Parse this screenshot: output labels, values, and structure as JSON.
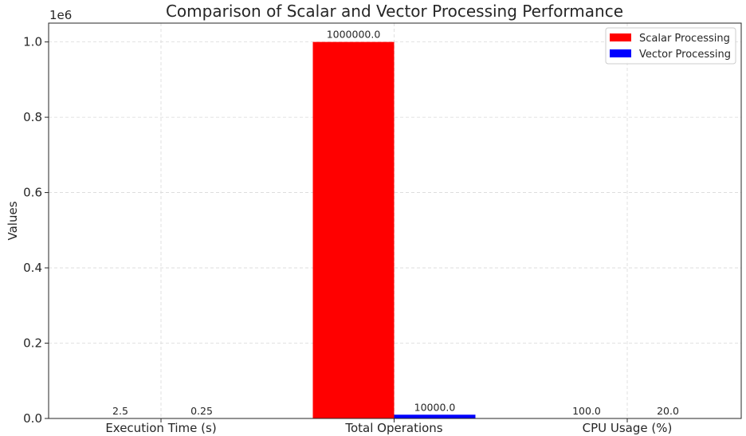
{
  "chart_data": {
    "type": "bar",
    "title": "Comparison of Scalar and Vector Processing Performance",
    "xlabel": "",
    "ylabel": "Values",
    "y_offset_label": "1e6",
    "ylim": [
      0,
      1050000
    ],
    "y_ticks": [
      0,
      200000,
      400000,
      600000,
      800000,
      1000000
    ],
    "y_tick_labels": [
      "0.0",
      "0.2",
      "0.4",
      "0.6",
      "0.8",
      "1.0"
    ],
    "categories": [
      "Execution Time (s)",
      "Total Operations",
      "CPU Usage (%)"
    ],
    "series": [
      {
        "name": "Scalar Processing",
        "color": "#ff0000",
        "values": [
          2.5,
          1000000,
          100
        ],
        "labels": [
          "2.5",
          "1000000.0",
          "100.0"
        ]
      },
      {
        "name": "Vector Processing",
        "color": "#0000ff",
        "values": [
          0.25,
          10000,
          20
        ],
        "labels": [
          "0.25",
          "10000.0",
          "20.0"
        ]
      }
    ],
    "grid": true,
    "legend_position": "upper right"
  }
}
